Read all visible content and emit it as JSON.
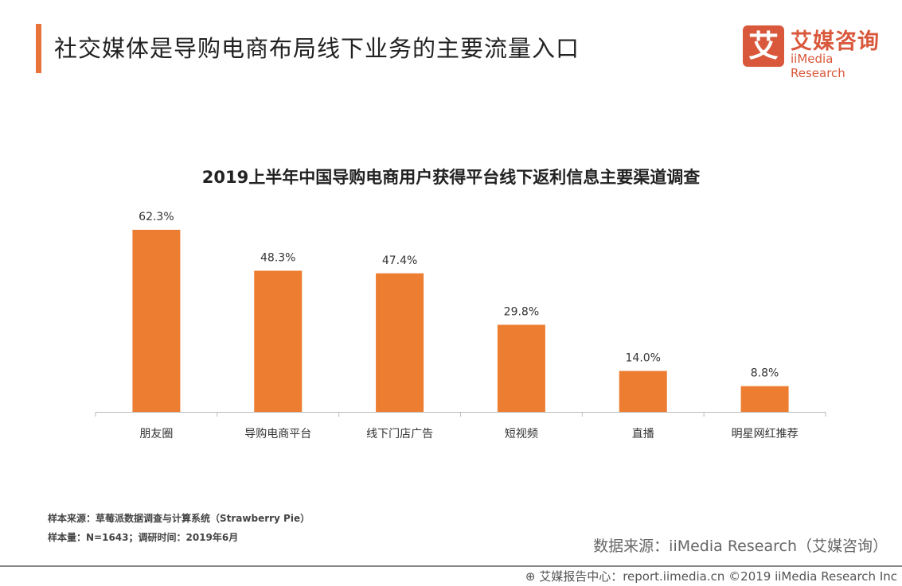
{
  "header": {
    "title": "社交媒体是导购电商布局线下业务的主要流量入口"
  },
  "logo": {
    "mark": "艾",
    "cn": "艾媒咨询",
    "en": "iiMedia Research"
  },
  "colors": {
    "accent": "#e8743b",
    "bar": "#ed7d31",
    "logo": "#d9583b"
  },
  "chart_data": {
    "type": "bar",
    "title": "2019上半年中国导购电商用户获得平台线下返利信息主要渠道调查",
    "categories": [
      "朋友圈",
      "导购电商平台",
      "线下门店广告",
      "短视频",
      "直播",
      "明星网红推荐"
    ],
    "values": [
      62.3,
      48.3,
      47.4,
      29.8,
      14.0,
      8.8
    ],
    "data_labels": [
      "62.3%",
      "48.3%",
      "47.4%",
      "29.8%",
      "14.0%",
      "8.8%"
    ],
    "unit": "%",
    "grid": false,
    "ylim": [
      0,
      70
    ]
  },
  "notes": {
    "sample_source": "样本来源：草莓派数据调查与计算系统（Strawberry  Pie）",
    "sample_size": "样本量：N=1643；调研时间：2019年6月"
  },
  "source": "数据来源：iiMedia Research（艾媒咨询）",
  "footer": "艾媒报告中心：report.iimedia.cn  ©2019  iiMedia Research  Inc"
}
